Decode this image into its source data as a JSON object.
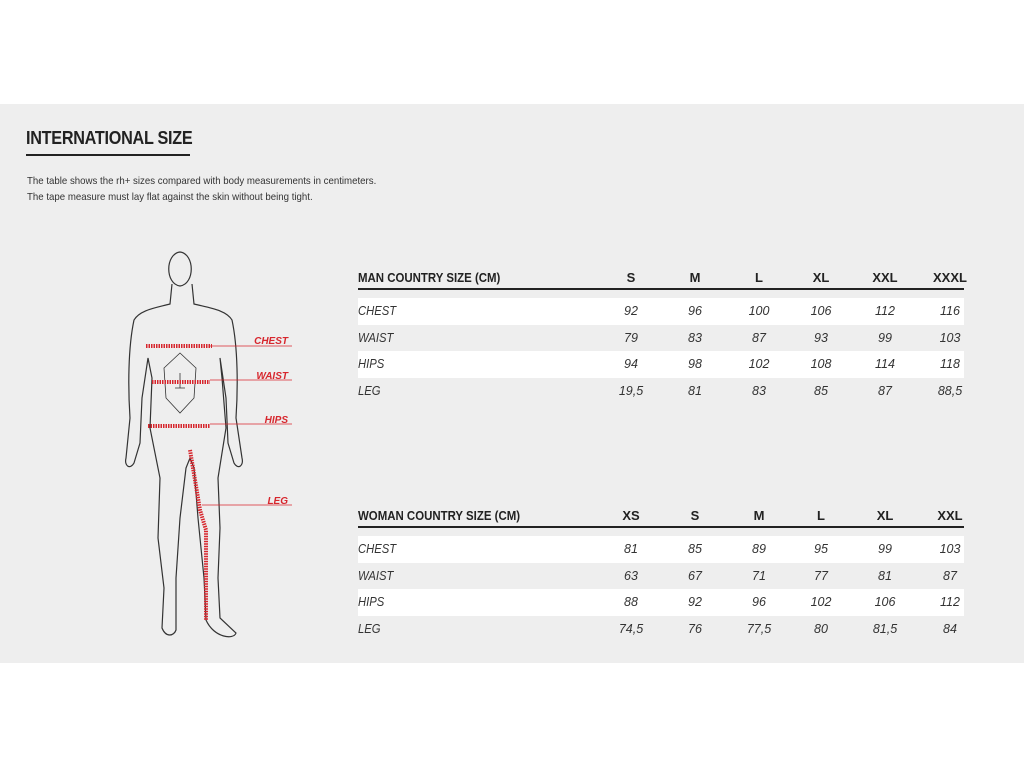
{
  "heading": "INTERNATIONAL SIZE",
  "description": [
    "The table shows the rh+ sizes compared with body measurements in centimeters.",
    "The tape measure must lay flat against the skin without being tight."
  ],
  "figure": {
    "labels": [
      "CHEST",
      "WAIST",
      "HIPS",
      "LEG"
    ],
    "accent_color": "#d7262d"
  },
  "man_table": {
    "title": "MAN COUNTRY SIZE (CM)",
    "sizes": [
      "S",
      "M",
      "L",
      "XL",
      "XXL",
      "XXXL"
    ],
    "rows": [
      {
        "label": "CHEST",
        "values": [
          "92",
          "96",
          "100",
          "106",
          "112",
          "116"
        ]
      },
      {
        "label": "WAIST",
        "values": [
          "79",
          "83",
          "87",
          "93",
          "99",
          "103"
        ]
      },
      {
        "label": "HIPS",
        "values": [
          "94",
          "98",
          "102",
          "108",
          "114",
          "118"
        ]
      },
      {
        "label": "LEG",
        "values": [
          "19,5",
          "81",
          "83",
          "85",
          "87",
          "88,5"
        ]
      }
    ]
  },
  "woman_table": {
    "title": "WOMAN COUNTRY SIZE (CM)",
    "sizes": [
      "XS",
      "S",
      "M",
      "L",
      "XL",
      "XXL"
    ],
    "rows": [
      {
        "label": "CHEST",
        "values": [
          "81",
          "85",
          "89",
          "95",
          "99",
          "103"
        ]
      },
      {
        "label": "WAIST",
        "values": [
          "63",
          "67",
          "71",
          "77",
          "81",
          "87"
        ]
      },
      {
        "label": "HIPS",
        "values": [
          "88",
          "92",
          "96",
          "102",
          "106",
          "112"
        ]
      },
      {
        "label": "LEG",
        "values": [
          "74,5",
          "76",
          "77,5",
          "80",
          "81,5",
          "84"
        ]
      }
    ]
  }
}
